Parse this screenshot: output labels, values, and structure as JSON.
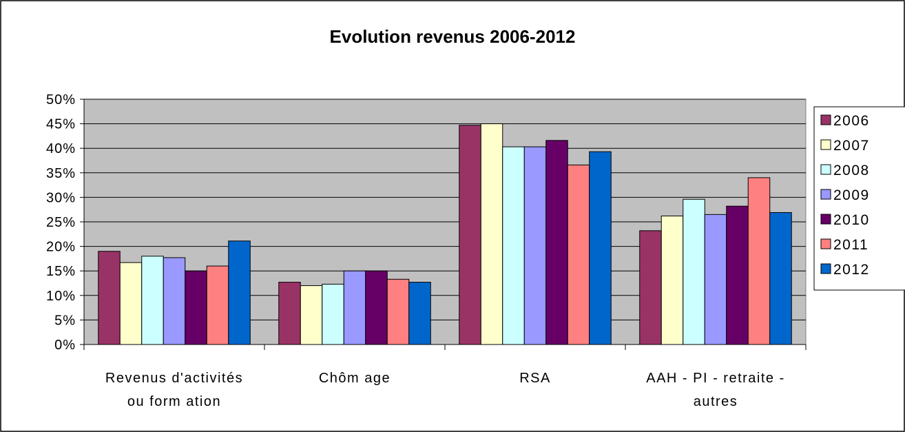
{
  "chart_data": {
    "type": "bar",
    "title": "Evolution revenus 2006-2012",
    "categories": [
      [
        "Revenus d'activités",
        "ou form ation"
      ],
      [
        "Chôm age"
      ],
      [
        "RSA"
      ],
      [
        "AAH - PI - retraite -",
        "autres"
      ]
    ],
    "y_ticks": [
      "0%",
      "5%",
      "10%",
      "15%",
      "20%",
      "25%",
      "30%",
      "35%",
      "40%",
      "45%",
      "50%"
    ],
    "ylim": [
      0,
      50
    ],
    "grid": true,
    "legend_position": "right",
    "series": [
      {
        "name": "2006",
        "color": "#993366",
        "values": [
          19,
          12.7,
          44.7,
          23.2
        ]
      },
      {
        "name": "2007",
        "color": "#FFFFCC",
        "values": [
          16.7,
          12,
          45,
          26.2
        ]
      },
      {
        "name": "2008",
        "color": "#CCFFFF",
        "values": [
          18,
          12.3,
          40.3,
          29.6
        ]
      },
      {
        "name": "2009",
        "color": "#9999FF",
        "values": [
          17.7,
          15,
          40.3,
          26.5
        ]
      },
      {
        "name": "2010",
        "color": "#660066",
        "values": [
          15,
          15,
          41.6,
          28.2
        ]
      },
      {
        "name": "2011",
        "color": "#FF8080",
        "values": [
          16,
          13.3,
          36.6,
          34
        ]
      },
      {
        "name": "2012",
        "color": "#0066CC",
        "values": [
          21.1,
          12.7,
          39.3,
          26.9
        ]
      }
    ],
    "plot_background": "#C0C0C0"
  }
}
